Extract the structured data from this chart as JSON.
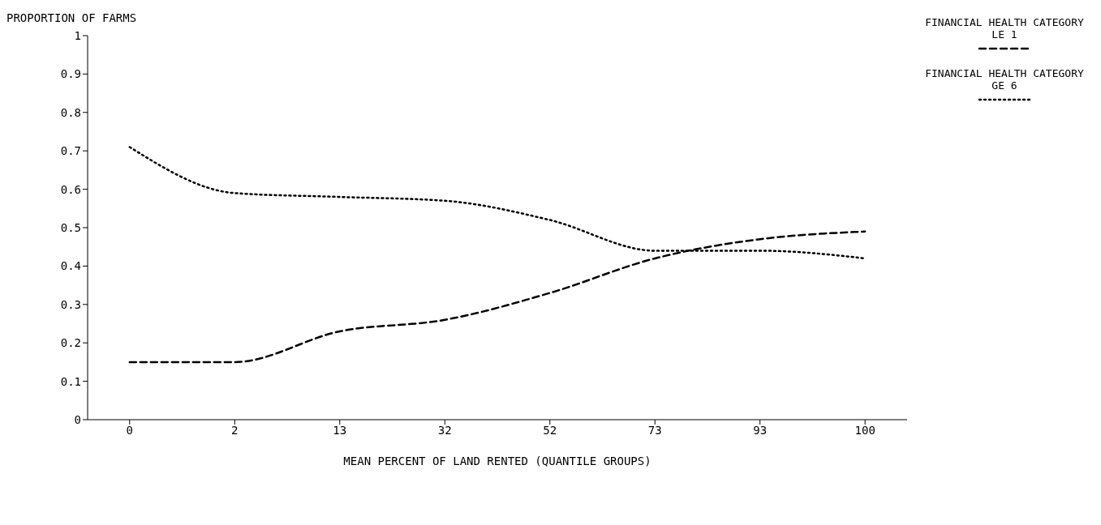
{
  "chart_data": {
    "type": "line",
    "xlabel": "MEAN PERCENT OF LAND RENTED  (QUANTILE GROUPS)",
    "ylabel": "PROPORTION OF FARMS",
    "categories": [
      "0",
      "2",
      "13",
      "32",
      "52",
      "73",
      "93",
      "100"
    ],
    "series": [
      {
        "name": "FINANCIAL HEALTH CATEGORY LE 1",
        "color": "#000000",
        "line_style": "dashed",
        "values": [
          0.15,
          0.15,
          0.23,
          0.26,
          0.33,
          0.42,
          0.47,
          0.49
        ]
      },
      {
        "name": "FINANCIAL HEALTH CATEGORY GE 6",
        "color": "#000000",
        "line_style": "dotted",
        "values": [
          0.71,
          0.59,
          0.58,
          0.57,
          0.52,
          0.44,
          0.44,
          0.42
        ]
      }
    ],
    "ylim": [
      0,
      1
    ],
    "yticks": [
      0,
      0.1,
      0.2,
      0.3,
      0.4,
      0.5,
      0.6,
      0.7,
      0.8,
      0.9,
      1
    ],
    "grid": false,
    "legend": "top right",
    "marker": "none"
  }
}
